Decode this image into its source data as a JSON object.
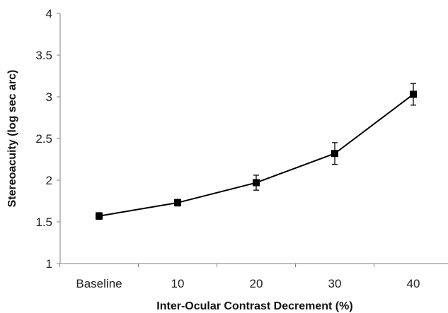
{
  "chart_data": {
    "type": "line",
    "title": "",
    "xlabel": "Inter-Ocular Contrast Decrement (%)",
    "ylabel": "Stereoacuity (log sec arc)",
    "categories": [
      "Baseline",
      "10",
      "20",
      "30",
      "40"
    ],
    "series": [
      {
        "values": [
          1.57,
          1.73,
          1.97,
          2.32,
          3.03
        ],
        "error": [
          0.04,
          0.04,
          0.09,
          0.13,
          0.13
        ],
        "marker": "square",
        "color": "#000000"
      }
    ],
    "ylim": [
      1,
      4
    ],
    "yticks": [
      "1",
      "1.5",
      "2",
      "2.5",
      "3",
      "3.5",
      "4"
    ],
    "grid": false,
    "legend": "none"
  }
}
